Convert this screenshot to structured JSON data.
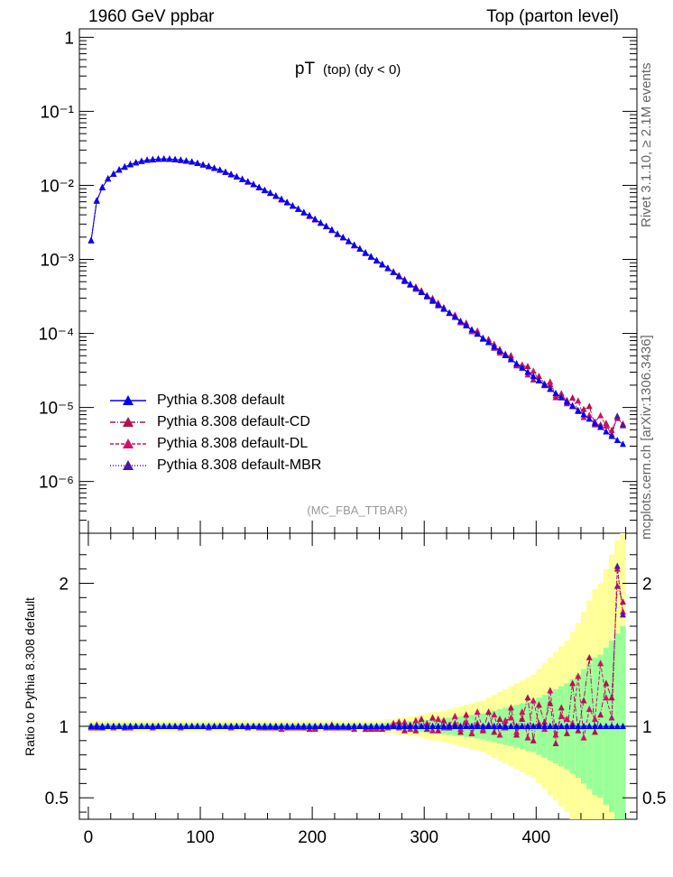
{
  "header": {
    "left": "1960 GeV ppbar",
    "right": "Top (parton level)"
  },
  "side_labels": {
    "rivet": "Rivet 3.1.10, ≥ 2.1M events",
    "mcplots": "mcplots.cern.ch [arXiv:1306.3436]"
  },
  "plot": {
    "title_main": "pT",
    "title_sub": "(top) (dy < 0)",
    "analysis": "(MC_FBA_TTBAR)",
    "ratio_ylabel": "Ratio to Pythia 8.308 default"
  },
  "legend": {
    "items": [
      {
        "label": "Pythia 8.308 default",
        "color": "#0000ff",
        "style": "solid"
      },
      {
        "label": "Pythia 8.308 default-CD",
        "color": "#b0124f",
        "style": "dashdot"
      },
      {
        "label": "Pythia 8.308 default-DL",
        "color": "#d11166",
        "style": "dashed"
      },
      {
        "label": "Pythia 8.308 default-MBR",
        "color": "#4b16a8",
        "style": "dotted"
      }
    ]
  },
  "chart_data": {
    "type": "line",
    "xlim": [
      -8,
      490
    ],
    "x_ticks": [
      0,
      100,
      200,
      300,
      400
    ],
    "main_ylim": [
      2e-07,
      1.3
    ],
    "main_yscale": "log",
    "main_y_ticks": [
      "1",
      "10⁻¹",
      "10⁻²",
      "10⁻³",
      "10⁻⁴",
      "10⁻⁵",
      "10⁻⁶"
    ],
    "ratio_ylim": [
      0.35,
      2.35
    ],
    "ratio_y_ticks": [
      "0.5",
      "1",
      "2"
    ],
    "x_binning": {
      "start": 0,
      "width": 5,
      "bins": 96
    },
    "reference_series": {
      "name": "Pythia 8.308 default",
      "note": "values per bin center",
      "values": [
        0.0018,
        0.0062,
        0.0094,
        0.0123,
        0.0143,
        0.0162,
        0.0178,
        0.0192,
        0.0203,
        0.0212,
        0.0219,
        0.0224,
        0.0227,
        0.0228,
        0.0227,
        0.0224,
        0.022,
        0.0214,
        0.0207,
        0.0199,
        0.019,
        0.0181,
        0.0171,
        0.0161,
        0.0151,
        0.0141,
        0.0131,
        0.0121,
        0.0112,
        0.0103,
        0.0094,
        0.0086,
        0.0079,
        0.0072,
        0.0065,
        0.0059,
        0.0053,
        0.0048,
        0.0043,
        0.0039,
        0.0035,
        0.0031,
        0.0028,
        0.0025,
        0.0022,
        0.00198,
        0.00176,
        0.00156,
        0.00139,
        0.00123,
        0.00109,
        0.00097,
        0.00086,
        0.00076,
        0.00067,
        0.00059,
        0.00052,
        0.00046,
        0.00041,
        0.00036,
        0.00032,
        0.00028,
        0.000245,
        0.000215,
        0.000189,
        0.000166,
        0.000146,
        0.000128,
        0.000112,
        9.85e-05,
        8.62e-05,
        7.56e-05,
        6.62e-05,
        5.8e-05,
        5.08e-05,
        4.45e-05,
        3.9e-05,
        3.42e-05,
        3e-05,
        2.63e-05,
        2.3e-05,
        2.02e-05,
        1.77e-05,
        1.55e-05,
        1.36e-05,
        1.19e-05,
        1.04e-05,
        9.1e-06,
        8e-06,
        7e-06,
        6.1e-06,
        5.4e-06,
        4.7e-06,
        4.1e-06,
        3.6e-06,
        3.2e-06
      ]
    },
    "ratios": {
      "Pythia 8.308 default-CD": [
        1.0,
        0.99,
        1.0,
        1.0,
        1.0,
        1.0,
        1.0,
        1.0,
        1.0,
        1.0,
        1.0,
        1.0,
        1.0,
        1.0,
        1.0,
        1.0,
        1.0,
        1.0,
        1.0,
        1.0,
        1.0,
        1.0,
        1.0,
        1.0,
        1.0,
        1.0,
        1.0,
        1.0,
        1.0,
        1.0,
        1.0,
        0.99,
        1.0,
        0.99,
        1.0,
        0.99,
        0.99,
        1.0,
        0.99,
        0.98,
        0.99,
        1.0,
        0.99,
        1.01,
        0.99,
        1.0,
        0.99,
        1.0,
        1.0,
        0.98,
        0.98,
        0.99,
        0.98,
        1.0,
        1.02,
        1.03,
        0.97,
        1.01,
        0.97,
        1.05,
        0.98,
        1.06,
        0.97,
        1.04,
        0.99,
        1.02,
        0.96,
        1.08,
        0.95,
        1.02,
        0.97,
        1.1,
        0.96,
        1.05,
        0.99,
        1.13,
        0.94,
        1.05,
        1.2,
        0.9,
        1.15,
        1.03,
        1.16,
        0.88,
        1.13,
        0.95,
        1.3,
        0.97,
        1.18,
        1.48,
        0.96,
        1.08,
        1.3,
        1.2,
        1.98,
        1.87
      ],
      "Pythia 8.308 default-DL": [
        0.99,
        1.01,
        0.99,
        1.0,
        0.99,
        1.0,
        1.0,
        0.99,
        1.0,
        1.0,
        1.0,
        0.99,
        1.0,
        1.0,
        1.0,
        1.0,
        0.99,
        1.0,
        1.0,
        1.0,
        1.0,
        0.99,
        1.0,
        1.0,
        1.0,
        0.99,
        1.0,
        1.0,
        0.99,
        1.0,
        0.99,
        1.0,
        0.99,
        1.0,
        0.98,
        1.0,
        0.99,
        0.99,
        1.0,
        1.0,
        0.98,
        1.0,
        1.0,
        0.99,
        1.0,
        0.99,
        1.0,
        0.98,
        1.0,
        1.0,
        0.99,
        0.98,
        1.0,
        0.99,
        1.01,
        0.99,
        1.03,
        0.98,
        1.04,
        1.0,
        1.02,
        0.97,
        1.05,
        0.99,
        1.01,
        1.07,
        0.98,
        1.03,
        0.95,
        1.1,
        0.98,
        1.01,
        1.08,
        0.94,
        1.04,
        1.06,
        0.96,
        1.1,
        0.92,
        1.18,
        1.02,
        0.98,
        1.25,
        0.94,
        1.07,
        1.05,
        1.02,
        1.35,
        0.92,
        1.12,
        1.05,
        1.44,
        1.2,
        1.06,
        2.1,
        1.8
      ],
      "Pythia 8.308 default-MBR": [
        1.0,
        1.0,
        0.99,
        1.0,
        1.0,
        1.0,
        0.99,
        1.0,
        1.0,
        1.0,
        1.0,
        1.0,
        1.0,
        1.0,
        1.0,
        1.0,
        1.0,
        1.0,
        1.0,
        1.0,
        1.0,
        1.0,
        1.0,
        1.0,
        1.0,
        1.0,
        1.0,
        1.0,
        1.0,
        1.0,
        1.0,
        1.0,
        1.0,
        1.0,
        1.0,
        1.0,
        1.0,
        1.0,
        1.0,
        1.0,
        1.0,
        1.0,
        1.0,
        1.0,
        1.0,
        1.0,
        1.0,
        1.0,
        1.0,
        1.0,
        1.0,
        1.0,
        1.0,
        1.0,
        1.0,
        1.0,
        1.0,
        1.0,
        1.0,
        1.0,
        1.0,
        1.0,
        1.0,
        1.0,
        1.0,
        1.0,
        1.0,
        1.0,
        1.0,
        1.0,
        1.0,
        1.0,
        1.0,
        1.0,
        1.0,
        1.0,
        1.0,
        1.0,
        1.0,
        1.0,
        1.0,
        1.0,
        1.0,
        1.0,
        1.0,
        1.0,
        1.0,
        1.0,
        1.0,
        1.0,
        1.0,
        1.0,
        1.0,
        1.0,
        2.12,
        1.78
      ]
    },
    "reference_rel_uncertainty": [
      0.02,
      0.02,
      0.02,
      0.02,
      0.02,
      0.02,
      0.02,
      0.02,
      0.02,
      0.02,
      0.02,
      0.02,
      0.02,
      0.02,
      0.02,
      0.02,
      0.02,
      0.02,
      0.02,
      0.02,
      0.02,
      0.02,
      0.02,
      0.02,
      0.02,
      0.02,
      0.02,
      0.02,
      0.02,
      0.02,
      0.02,
      0.02,
      0.02,
      0.02,
      0.02,
      0.02,
      0.02,
      0.02,
      0.02,
      0.02,
      0.02,
      0.02,
      0.02,
      0.02,
      0.02,
      0.02,
      0.02,
      0.02,
      0.02,
      0.02,
      0.02,
      0.02,
      0.02,
      0.025,
      0.025,
      0.03,
      0.03,
      0.035,
      0.035,
      0.04,
      0.045,
      0.05,
      0.05,
      0.055,
      0.06,
      0.065,
      0.07,
      0.075,
      0.08,
      0.085,
      0.09,
      0.1,
      0.11,
      0.12,
      0.13,
      0.14,
      0.15,
      0.16,
      0.17,
      0.18,
      0.2,
      0.22,
      0.24,
      0.26,
      0.28,
      0.3,
      0.33,
      0.36,
      0.4,
      0.44,
      0.48,
      0.5,
      0.55,
      0.6,
      0.65,
      0.7
    ]
  }
}
